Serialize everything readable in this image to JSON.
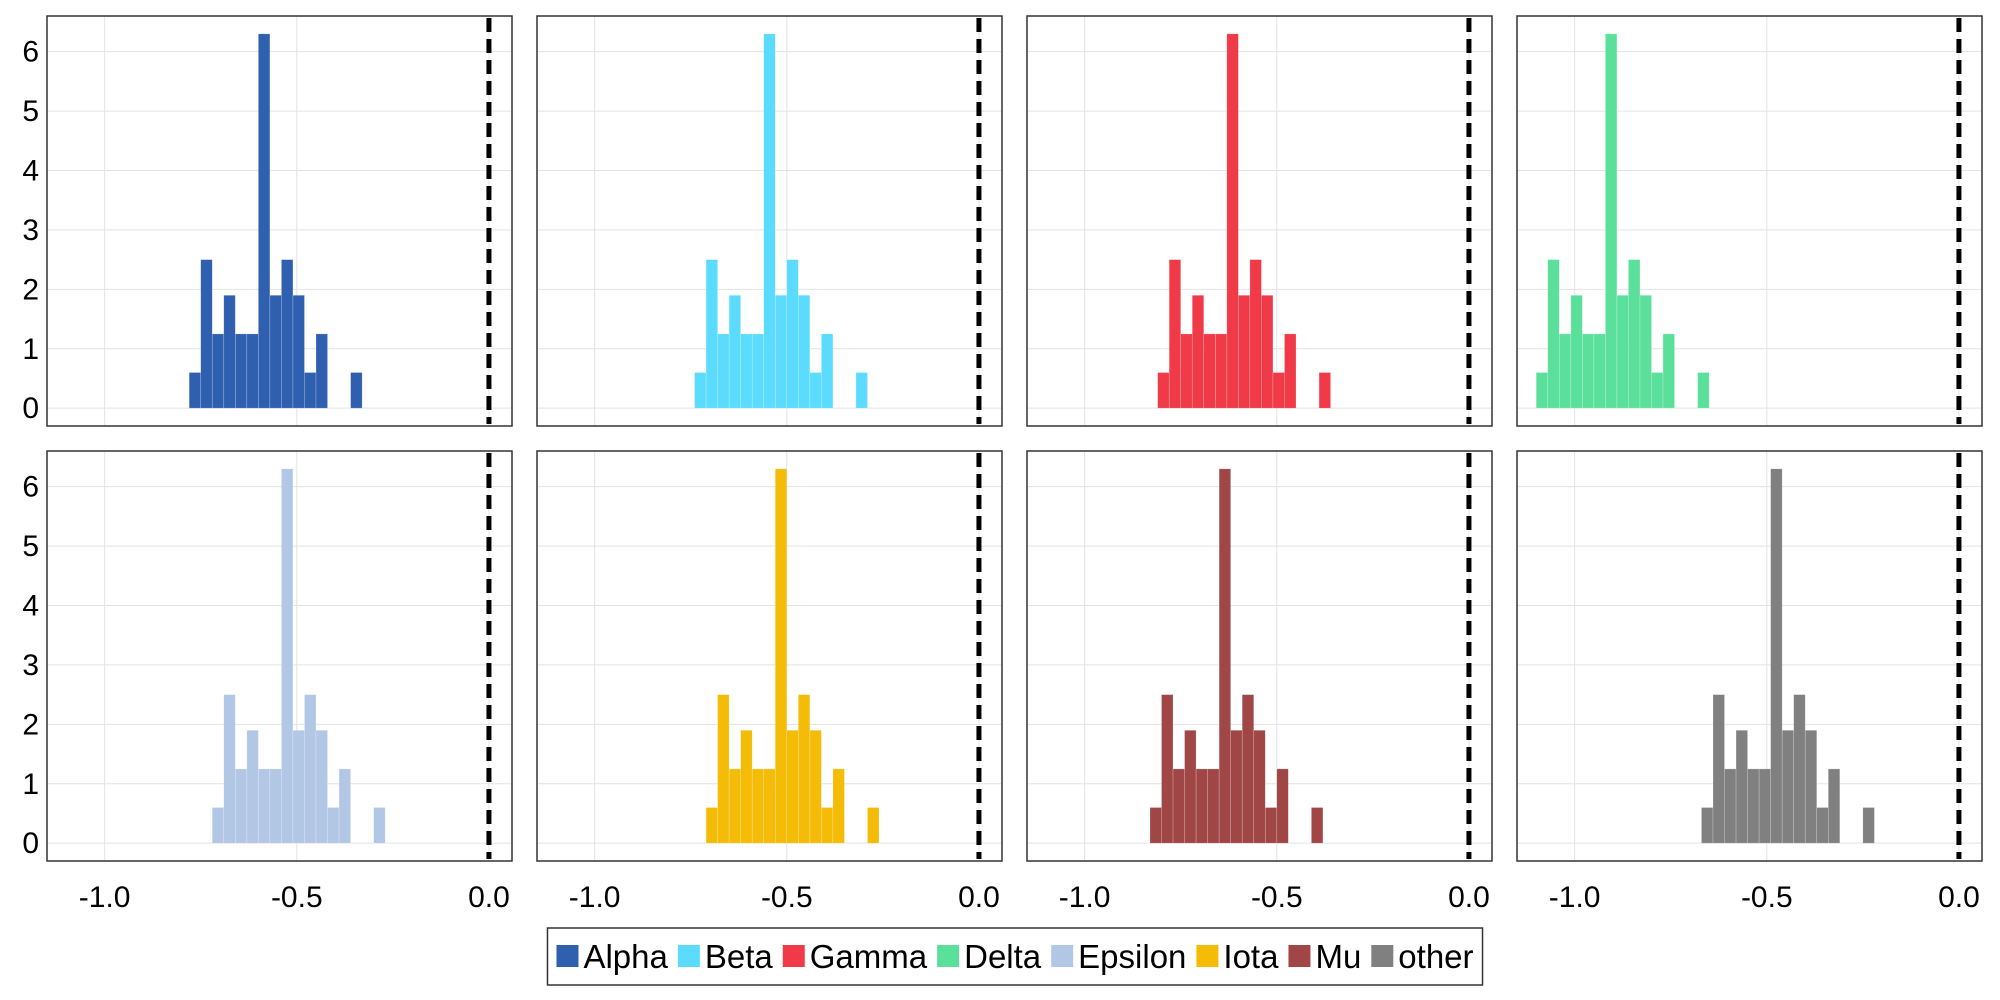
{
  "chart_data": {
    "type": "bar",
    "layout": "facet-grid-2x4",
    "bin_width": 0.03,
    "x_ticks": [
      "-1.0",
      "-0.5",
      "0.0"
    ],
    "y_ticks": [
      "0",
      "1",
      "2",
      "3",
      "4",
      "5",
      "6"
    ],
    "xlim": [
      -1.15,
      0.06
    ],
    "ylim": [
      -0.3,
      6.6
    ],
    "grid": true,
    "reference_line": {
      "x": 0.0,
      "style": "dashed",
      "color": "#000000"
    },
    "legend": {
      "placement": "bottom-center"
    },
    "panels": [
      {
        "name": "Alpha",
        "color": "#2F5FAF",
        "bins_start": -0.78,
        "counts": [
          0.6,
          2.5,
          1.25,
          1.9,
          1.25,
          1.25,
          6.3,
          1.9,
          2.5,
          1.9,
          0.6,
          1.25,
          0,
          0,
          0.6
        ]
      },
      {
        "name": "Beta",
        "color": "#5BDBFD",
        "bins_start": -0.74,
        "counts": [
          0.6,
          2.5,
          1.25,
          1.9,
          1.25,
          1.25,
          6.3,
          1.9,
          2.5,
          1.9,
          0.6,
          1.25,
          0,
          0,
          0.6
        ]
      },
      {
        "name": "Gamma",
        "color": "#F03A47",
        "bins_start": -0.81,
        "counts": [
          0.6,
          2.5,
          1.25,
          1.9,
          1.25,
          1.25,
          6.3,
          1.9,
          2.5,
          1.9,
          0.6,
          1.25,
          0,
          0,
          0.6
        ]
      },
      {
        "name": "Delta",
        "color": "#5BE09B",
        "bins_start": -1.1,
        "counts": [
          0.6,
          2.5,
          1.25,
          1.9,
          1.25,
          1.25,
          6.3,
          1.9,
          2.5,
          1.9,
          0.6,
          1.25,
          0,
          0,
          0.6
        ]
      },
      {
        "name": "Epsilon",
        "color": "#B2C7E6",
        "bins_start": -0.72,
        "counts": [
          0.6,
          2.5,
          1.25,
          1.9,
          1.25,
          1.25,
          6.3,
          1.9,
          2.5,
          1.9,
          0.6,
          1.25,
          0,
          0,
          0.6
        ]
      },
      {
        "name": "Iota",
        "color": "#F4BC06",
        "bins_start": -0.71,
        "counts": [
          0.6,
          2.5,
          1.25,
          1.9,
          1.25,
          1.25,
          6.3,
          1.9,
          2.5,
          1.9,
          0.6,
          1.25,
          0,
          0,
          0.6
        ]
      },
      {
        "name": "Mu",
        "color": "#A04646",
        "bins_start": -0.83,
        "counts": [
          0.6,
          2.5,
          1.25,
          1.9,
          1.25,
          1.25,
          6.3,
          1.9,
          2.5,
          1.9,
          0.6,
          1.25,
          0,
          0,
          0.6
        ]
      },
      {
        "name": "other",
        "color": "#808080",
        "bins_start": -0.67,
        "counts": [
          0.6,
          2.5,
          1.25,
          1.9,
          1.25,
          1.25,
          6.3,
          1.9,
          2.5,
          1.9,
          0.6,
          1.25,
          0,
          0,
          0.6
        ]
      }
    ]
  }
}
